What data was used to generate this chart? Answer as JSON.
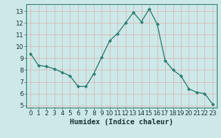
{
  "x": [
    0,
    1,
    2,
    3,
    4,
    5,
    6,
    7,
    8,
    9,
    10,
    11,
    12,
    13,
    14,
    15,
    16,
    17,
    18,
    19,
    20,
    21,
    22,
    23
  ],
  "y": [
    9.4,
    8.4,
    8.3,
    8.1,
    7.8,
    7.5,
    6.6,
    6.6,
    7.7,
    9.1,
    10.5,
    11.1,
    12.0,
    12.9,
    12.1,
    13.2,
    11.9,
    8.8,
    8.0,
    7.5,
    6.4,
    6.1,
    6.0,
    5.1
  ],
  "line_color": "#2e7d6e",
  "marker": "D",
  "marker_size": 2.2,
  "line_width": 1.0,
  "xlabel": "Humidex (Indice chaleur)",
  "xlim": [
    -0.5,
    23.5
  ],
  "ylim": [
    4.8,
    13.6
  ],
  "yticks": [
    5,
    6,
    7,
    8,
    9,
    10,
    11,
    12,
    13
  ],
  "xticks": [
    0,
    1,
    2,
    3,
    4,
    5,
    6,
    7,
    8,
    9,
    10,
    11,
    12,
    13,
    14,
    15,
    16,
    17,
    18,
    19,
    20,
    21,
    22,
    23
  ],
  "bg_color": "#cce8e8",
  "grid_color": "#d8b8b8",
  "tick_fontsize": 6.5,
  "xlabel_fontsize": 7.5
}
